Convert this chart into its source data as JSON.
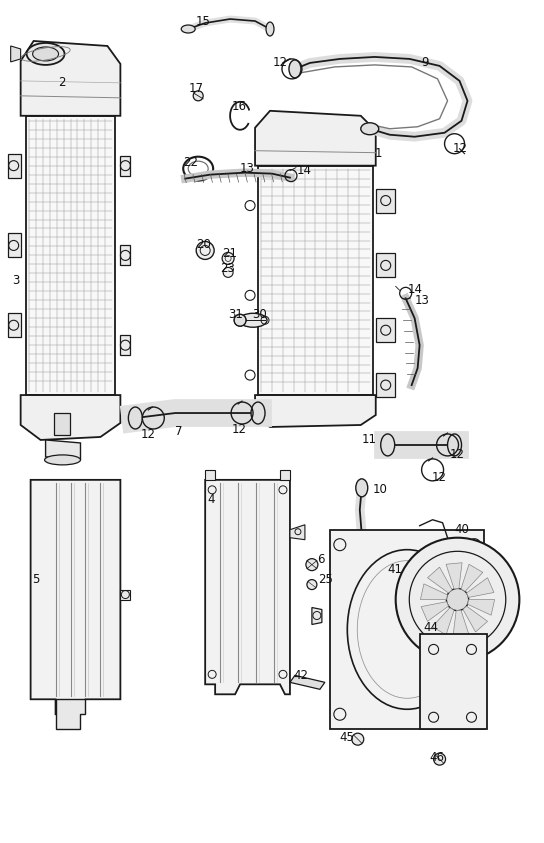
{
  "bg_color": "#ffffff",
  "line_color": "#1a1a1a",
  "label_color": "#111111",
  "fig_width": 5.44,
  "fig_height": 8.43,
  "dpi": 100
}
